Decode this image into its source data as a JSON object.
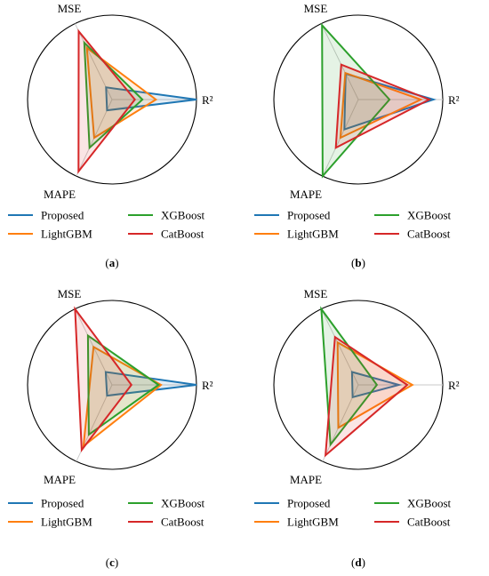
{
  "chart_data": [
    {
      "type": "radar",
      "caption": "(a)",
      "caption_letter": "a",
      "axes": [
        "R²",
        "MSE",
        "MAPE"
      ],
      "rmax": 1.0,
      "series": [
        {
          "name": "Proposed",
          "values": [
            1.0,
            0.16,
            0.14
          ],
          "color": "#1f77b4"
        },
        {
          "name": "LightGBM",
          "values": [
            0.52,
            0.68,
            0.5
          ],
          "color": "#ff7f0e"
        },
        {
          "name": "XGBoost",
          "values": [
            0.36,
            0.75,
            0.63
          ],
          "color": "#2ca02c"
        },
        {
          "name": "CatBoost",
          "values": [
            0.27,
            0.9,
            0.94
          ],
          "color": "#d62728"
        }
      ]
    },
    {
      "type": "radar",
      "caption": "(b)",
      "caption_letter": "b",
      "axes": [
        "R²",
        "MSE",
        "MAPE"
      ],
      "rmax": 1.0,
      "series": [
        {
          "name": "Proposed",
          "values": [
            0.89,
            0.34,
            0.39
          ],
          "color": "#1f77b4"
        },
        {
          "name": "LightGBM",
          "values": [
            0.74,
            0.35,
            0.5
          ],
          "color": "#ff7f0e"
        },
        {
          "name": "XGBoost",
          "values": [
            0.37,
            0.98,
            1.0
          ],
          "color": "#2ca02c"
        },
        {
          "name": "CatBoost",
          "values": [
            0.84,
            0.46,
            0.63
          ],
          "color": "#d62728"
        }
      ]
    },
    {
      "type": "radar",
      "caption": "(c)",
      "caption_letter": "c",
      "axes": [
        "R²",
        "MSE",
        "MAPE"
      ],
      "rmax": 1.0,
      "series": [
        {
          "name": "Proposed",
          "values": [
            1.0,
            0.17,
            0.14
          ],
          "color": "#1f77b4"
        },
        {
          "name": "LightGBM",
          "values": [
            0.58,
            0.5,
            0.8
          ],
          "color": "#ff7f0e"
        },
        {
          "name": "XGBoost",
          "values": [
            0.55,
            0.65,
            0.65
          ],
          "color": "#2ca02c"
        },
        {
          "name": "CatBoost",
          "values": [
            0.23,
            1.0,
            0.85
          ],
          "color": "#d62728"
        }
      ]
    },
    {
      "type": "radar",
      "caption": "(d)",
      "caption_letter": "d",
      "axes": [
        "R²",
        "MSE",
        "MAPE"
      ],
      "rmax": 1.0,
      "series": [
        {
          "name": "Proposed",
          "values": [
            0.48,
            0.17,
            0.16
          ],
          "color": "#1f77b4"
        },
        {
          "name": "LightGBM",
          "values": [
            0.64,
            0.56,
            0.56
          ],
          "color": "#ff7f0e"
        },
        {
          "name": "XGBoost",
          "values": [
            0.22,
            1.0,
            0.78
          ],
          "color": "#2ca02c"
        },
        {
          "name": "CatBoost",
          "values": [
            0.58,
            0.63,
            0.92
          ],
          "color": "#d62728"
        }
      ]
    }
  ],
  "legend": [
    {
      "name": "Proposed",
      "color": "#1f77b4"
    },
    {
      "name": "XGBoost",
      "color": "#2ca02c"
    },
    {
      "name": "LightGBM",
      "color": "#ff7f0e"
    },
    {
      "name": "CatBoost",
      "color": "#d62728"
    }
  ]
}
